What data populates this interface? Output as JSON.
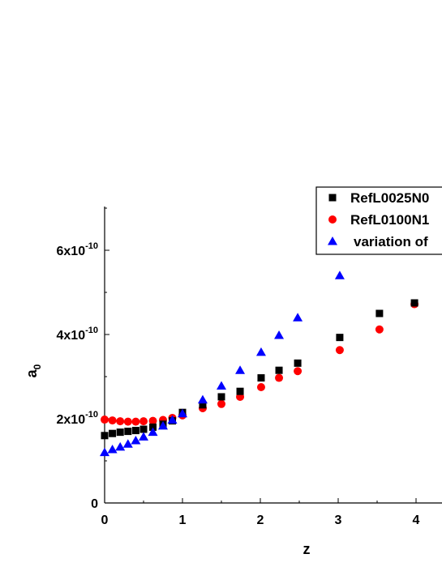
{
  "chart_data": {
    "type": "scatter",
    "xlabel": "z",
    "ylabel": "a",
    "ylabel_subscript": "0",
    "xlim": [
      0,
      4.3
    ],
    "ylim": [
      0,
      7e-10
    ],
    "x_ticks": [
      {
        "value": 0,
        "label": "0"
      },
      {
        "value": 1,
        "label": "1"
      },
      {
        "value": 2,
        "label": "2"
      },
      {
        "value": 3,
        "label": "3"
      },
      {
        "value": 4,
        "label": "4"
      }
    ],
    "y_ticks": [
      {
        "value": 0,
        "mantissa": "0",
        "exponent": ""
      },
      {
        "value": 2e-10,
        "mantissa": "2x10",
        "exponent": "-10"
      },
      {
        "value": 4e-10,
        "mantissa": "4x10",
        "exponent": "-10"
      },
      {
        "value": 6e-10,
        "mantissa": "6x10",
        "exponent": "-10"
      }
    ],
    "legend_placement": "top-right",
    "series": [
      {
        "name": "RefL0025N0",
        "marker": "square",
        "color": "#000000",
        "points": [
          [
            0.0,
            1.6e-10
          ],
          [
            0.1,
            1.65e-10
          ],
          [
            0.2,
            1.68e-10
          ],
          [
            0.3,
            1.7e-10
          ],
          [
            0.4,
            1.72e-10
          ],
          [
            0.5,
            1.75e-10
          ],
          [
            0.62,
            1.8e-10
          ],
          [
            0.75,
            1.87e-10
          ],
          [
            0.87,
            1.95e-10
          ],
          [
            1.0,
            2.15e-10
          ],
          [
            1.26,
            2.33e-10
          ],
          [
            1.5,
            2.52e-10
          ],
          [
            1.74,
            2.65e-10
          ],
          [
            2.01,
            2.97e-10
          ],
          [
            2.24,
            3.15e-10
          ],
          [
            2.48,
            3.32e-10
          ],
          [
            3.02,
            3.93e-10
          ],
          [
            3.53,
            4.5e-10
          ],
          [
            3.98,
            4.75e-10
          ]
        ]
      },
      {
        "name": "RefL0100N1",
        "marker": "circle",
        "color": "#ff0000",
        "points": [
          [
            0.0,
            1.98e-10
          ],
          [
            0.1,
            1.96e-10
          ],
          [
            0.2,
            1.94e-10
          ],
          [
            0.3,
            1.93e-10
          ],
          [
            0.4,
            1.93e-10
          ],
          [
            0.5,
            1.94e-10
          ],
          [
            0.62,
            1.95e-10
          ],
          [
            0.75,
            1.97e-10
          ],
          [
            0.87,
            2.02e-10
          ],
          [
            1.0,
            2.08e-10
          ],
          [
            1.26,
            2.25e-10
          ],
          [
            1.5,
            2.35e-10
          ],
          [
            1.74,
            2.52e-10
          ],
          [
            2.01,
            2.75e-10
          ],
          [
            2.24,
            2.97e-10
          ],
          [
            2.48,
            3.13e-10
          ],
          [
            3.02,
            3.63e-10
          ],
          [
            3.53,
            4.12e-10
          ],
          [
            3.98,
            4.72e-10
          ]
        ]
      },
      {
        "name": "variation of",
        "marker": "triangle",
        "color": "#0000ff",
        "points": [
          [
            0.0,
            1.2e-10
          ],
          [
            0.1,
            1.27e-10
          ],
          [
            0.2,
            1.33e-10
          ],
          [
            0.3,
            1.4e-10
          ],
          [
            0.4,
            1.48e-10
          ],
          [
            0.5,
            1.57e-10
          ],
          [
            0.62,
            1.68e-10
          ],
          [
            0.75,
            1.83e-10
          ],
          [
            0.87,
            1.97e-10
          ],
          [
            1.0,
            2.12e-10
          ],
          [
            1.26,
            2.45e-10
          ],
          [
            1.5,
            2.78e-10
          ],
          [
            1.74,
            3.15e-10
          ],
          [
            2.01,
            3.58e-10
          ],
          [
            2.24,
            3.98e-10
          ],
          [
            2.48,
            4.4e-10
          ],
          [
            3.02,
            5.4e-10
          ]
        ]
      }
    ]
  }
}
